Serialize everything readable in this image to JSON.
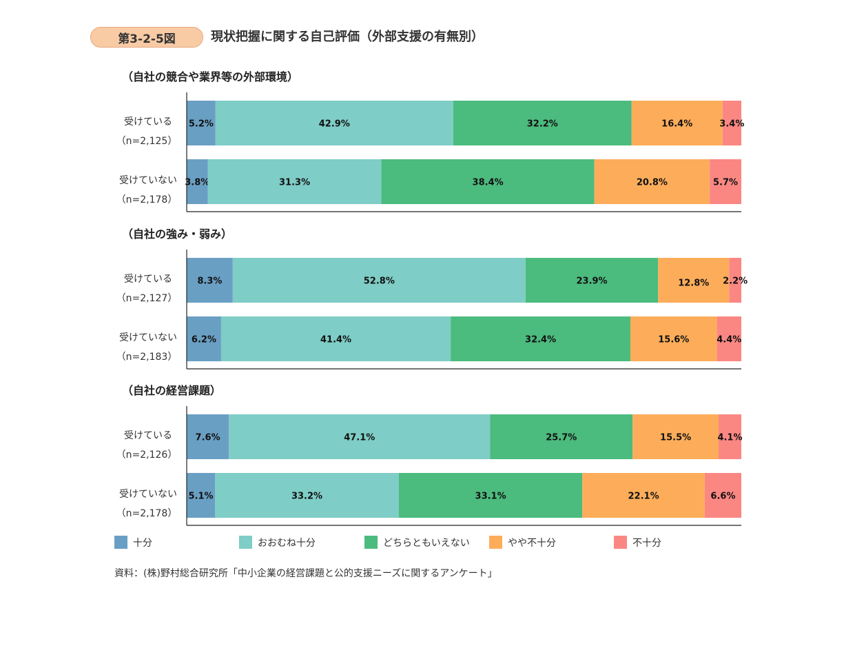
{
  "figure": {
    "number": "第3-2-5図",
    "title": "現状把握に関する自己評価（外部支援の有無別）"
  },
  "chart_data": {
    "type": "bar",
    "orientation": "horizontal",
    "stacked": true,
    "unit": "%",
    "xlim": [
      0,
      100
    ],
    "categories_legend": [
      {
        "name": "十分",
        "color": "#6a9fc4"
      },
      {
        "name": "おおむね十分",
        "color": "#7ecdc6"
      },
      {
        "name": "どちらともいえない",
        "color": "#4cbb7e"
      },
      {
        "name": "やや不十分",
        "color": "#fdad5a"
      },
      {
        "name": "不十分",
        "color": "#fb8783"
      }
    ],
    "panels": [
      {
        "title": "（自社の競合や業界等の外部環境）",
        "rows": [
          {
            "label": "受けている",
            "n": "（n=2,125）",
            "values": [
              5.2,
              42.9,
              32.2,
              16.4,
              3.4
            ]
          },
          {
            "label": "受けていない",
            "n": "（n=2,178）",
            "values": [
              3.8,
              31.3,
              38.4,
              20.8,
              5.7
            ]
          }
        ]
      },
      {
        "title": "（自社の強み・弱み）",
        "rows": [
          {
            "label": "受けている",
            "n": "（n=2,127）",
            "values": [
              8.3,
              52.8,
              23.9,
              12.8,
              2.2
            ]
          },
          {
            "label": "受けていない",
            "n": "（n=2,183）",
            "values": [
              6.2,
              41.4,
              32.4,
              15.6,
              4.4
            ]
          }
        ]
      },
      {
        "title": "（自社の経営課題）",
        "rows": [
          {
            "label": "受けている",
            "n": "（n=2,126）",
            "values": [
              7.6,
              47.1,
              25.7,
              15.5,
              4.1
            ]
          },
          {
            "label": "受けていない",
            "n": "（n=2,178）",
            "values": [
              5.1,
              33.2,
              33.1,
              22.1,
              6.6
            ]
          }
        ]
      }
    ]
  },
  "source": "資料：(株)野村総合研究所「中小企業の経営課題と公的支援ニーズに関するアンケート」"
}
